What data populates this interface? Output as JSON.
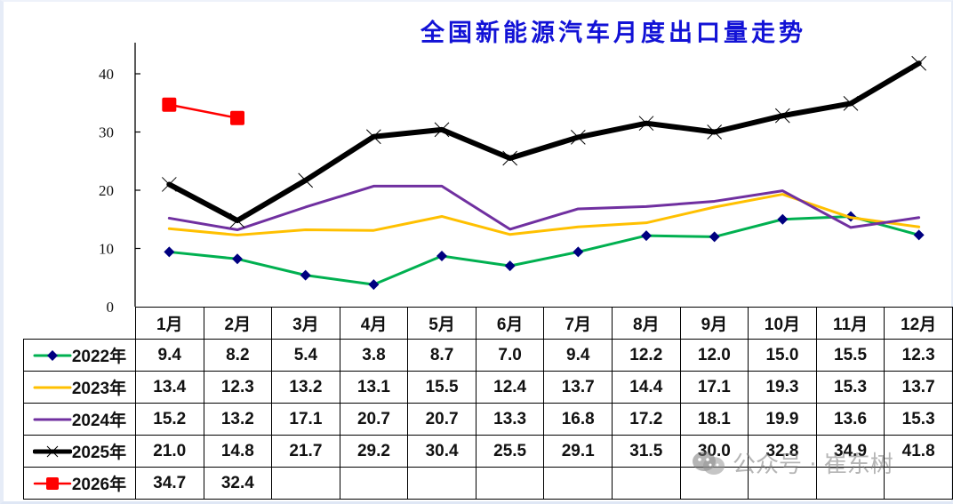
{
  "title": "全国新能源汽车月度出口量走势",
  "watermark": {
    "icon": "wechat-icon",
    "text": "公众号 · 崔东树"
  },
  "chart_data": {
    "type": "line",
    "title": "全国新能源汽车月度出口量走势",
    "xlabel": "",
    "ylabel": "",
    "ylim": [
      0,
      40
    ],
    "yticks": [
      0,
      10,
      20,
      30,
      40
    ],
    "grid": false,
    "legend_position": "data-table-left",
    "categories": [
      "1月",
      "2月",
      "3月",
      "4月",
      "5月",
      "6月",
      "7月",
      "8月",
      "9月",
      "10月",
      "11月",
      "12月"
    ],
    "series": [
      {
        "name": "2022年",
        "color": "#00b050",
        "marker": "diamond",
        "marker_color": "#000080",
        "line_width": 3,
        "values": [
          9.4,
          8.2,
          5.4,
          3.8,
          8.7,
          7.0,
          9.4,
          12.2,
          12.0,
          15.0,
          15.5,
          12.3
        ]
      },
      {
        "name": "2023年",
        "color": "#ffc000",
        "marker": "none",
        "line_width": 3,
        "values": [
          13.4,
          12.3,
          13.2,
          13.1,
          15.5,
          12.4,
          13.7,
          14.4,
          17.1,
          19.3,
          15.3,
          13.7
        ]
      },
      {
        "name": "2024年",
        "color": "#7030a0",
        "marker": "none",
        "line_width": 3,
        "values": [
          15.2,
          13.2,
          17.1,
          20.7,
          20.7,
          13.3,
          16.8,
          17.2,
          18.1,
          19.9,
          13.6,
          15.3
        ]
      },
      {
        "name": "2025年",
        "color": "#000000",
        "marker": "x",
        "marker_color": "#000000",
        "line_width": 6,
        "values": [
          21.0,
          14.8,
          21.7,
          29.2,
          30.4,
          25.5,
          29.1,
          31.5,
          30.0,
          32.8,
          34.9,
          41.8
        ]
      },
      {
        "name": "2026年",
        "color": "#ff0000",
        "marker": "square",
        "marker_color": "#ff0000",
        "line_width": 2.5,
        "values": [
          34.7,
          32.4,
          null,
          null,
          null,
          null,
          null,
          null,
          null,
          null,
          null,
          null
        ]
      }
    ]
  },
  "table": {
    "headers": [
      "1月",
      "2月",
      "3月",
      "4月",
      "5月",
      "6月",
      "7月",
      "8月",
      "9月",
      "10月",
      "11月",
      "12月"
    ],
    "rows": [
      {
        "label": "2022年",
        "cells": [
          "9.4",
          "8.2",
          "5.4",
          "3.8",
          "8.7",
          "7.0",
          "9.4",
          "12.2",
          "12.0",
          "15.0",
          "15.5",
          "12.3"
        ]
      },
      {
        "label": "2023年",
        "cells": [
          "13.4",
          "12.3",
          "13.2",
          "13.1",
          "15.5",
          "12.4",
          "13.7",
          "14.4",
          "17.1",
          "19.3",
          "15.3",
          "13.7"
        ]
      },
      {
        "label": "2024年",
        "cells": [
          "15.2",
          "13.2",
          "17.1",
          "20.7",
          "20.7",
          "13.3",
          "16.8",
          "17.2",
          "18.1",
          "19.9",
          "13.6",
          "15.3"
        ]
      },
      {
        "label": "2025年",
        "cells": [
          "21.0",
          "14.8",
          "21.7",
          "29.2",
          "30.4",
          "25.5",
          "29.1",
          "31.5",
          "30.0",
          "32.8",
          "34.9",
          "41.8"
        ]
      },
      {
        "label": "2026年",
        "cells": [
          "34.7",
          "32.4",
          "",
          "",
          "",
          "",
          "",
          "",
          "",
          "",
          "",
          ""
        ]
      }
    ]
  }
}
